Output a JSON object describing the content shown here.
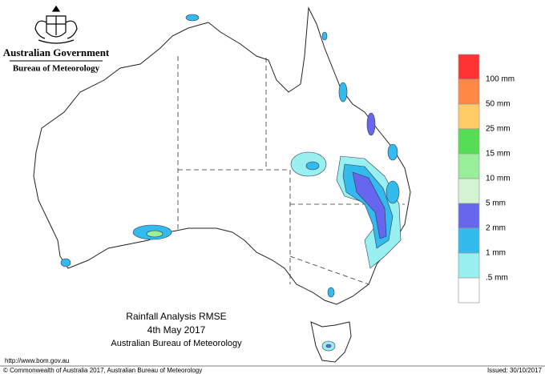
{
  "header": {
    "government": "Australian Government",
    "bureau": "Bureau of Meteorology"
  },
  "legend": {
    "colors": [
      "#ff3333",
      "#ff8844",
      "#ffcc66",
      "#55dd55",
      "#99ee99",
      "#d4f5d4",
      "#6666ee",
      "#33bbee",
      "#99f0f0",
      "#ffffff"
    ],
    "labels": [
      "100 mm",
      "50 mm",
      "25 mm",
      "15 mm",
      "10 mm",
      "5 mm",
      "2 mm",
      "1 mm",
      ".5 mm"
    ]
  },
  "title": {
    "line1": "Rainfall Analysis RMSE",
    "line2": "4th  May  2017",
    "line3": "Australian Bureau of Meteorology"
  },
  "footer": {
    "url": "http://www.bom.gov.au",
    "copyright": "© Commonwealth of Australia 2017, Australian Bureau of Meteorology",
    "issued": "Issued: 30/10/2017"
  }
}
